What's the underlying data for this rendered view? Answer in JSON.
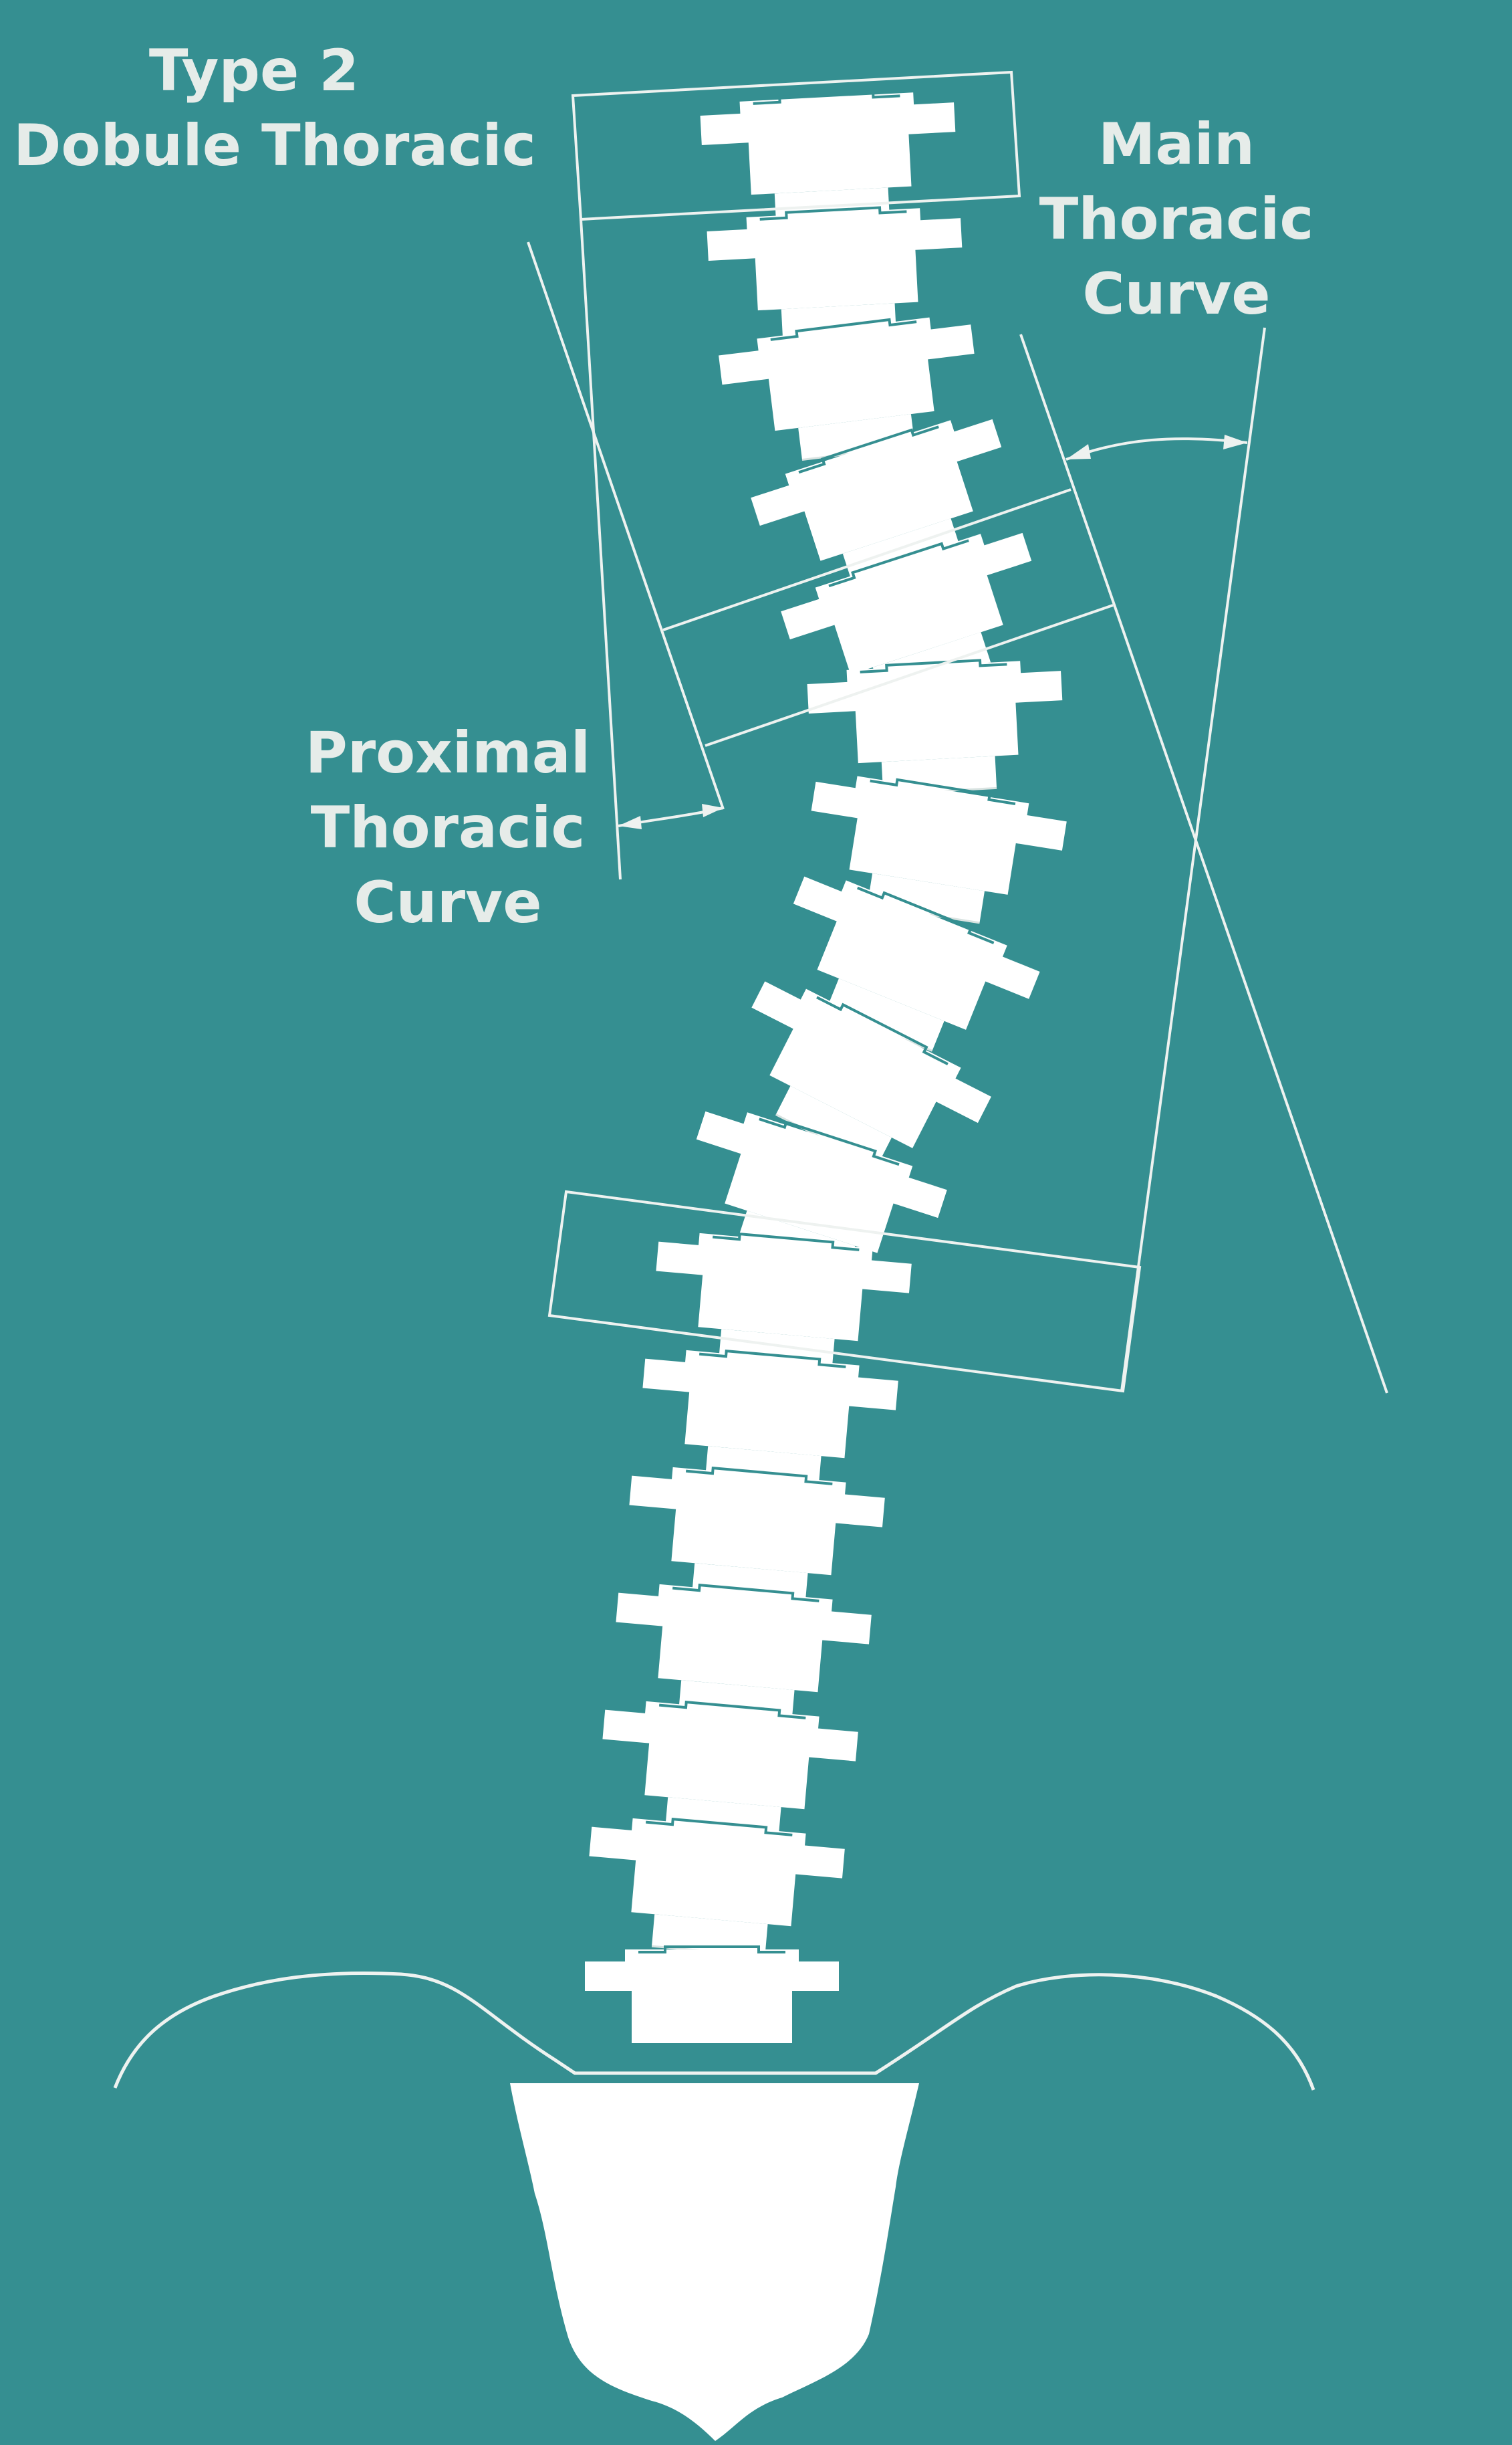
{
  "title": {
    "line1": "Type 2",
    "line2": "Dobule Thoracic"
  },
  "labels": {
    "main_curve": [
      "Main",
      "Thoracic",
      "Curve"
    ],
    "proximal_curve": [
      "Proximal",
      "Thoracic",
      "Curve"
    ]
  },
  "colors": {
    "background": "#358f91",
    "bone": "#ffffff",
    "lines": "#eef2f0",
    "text": "#e6ece9"
  },
  "vertebrae_count": 17
}
